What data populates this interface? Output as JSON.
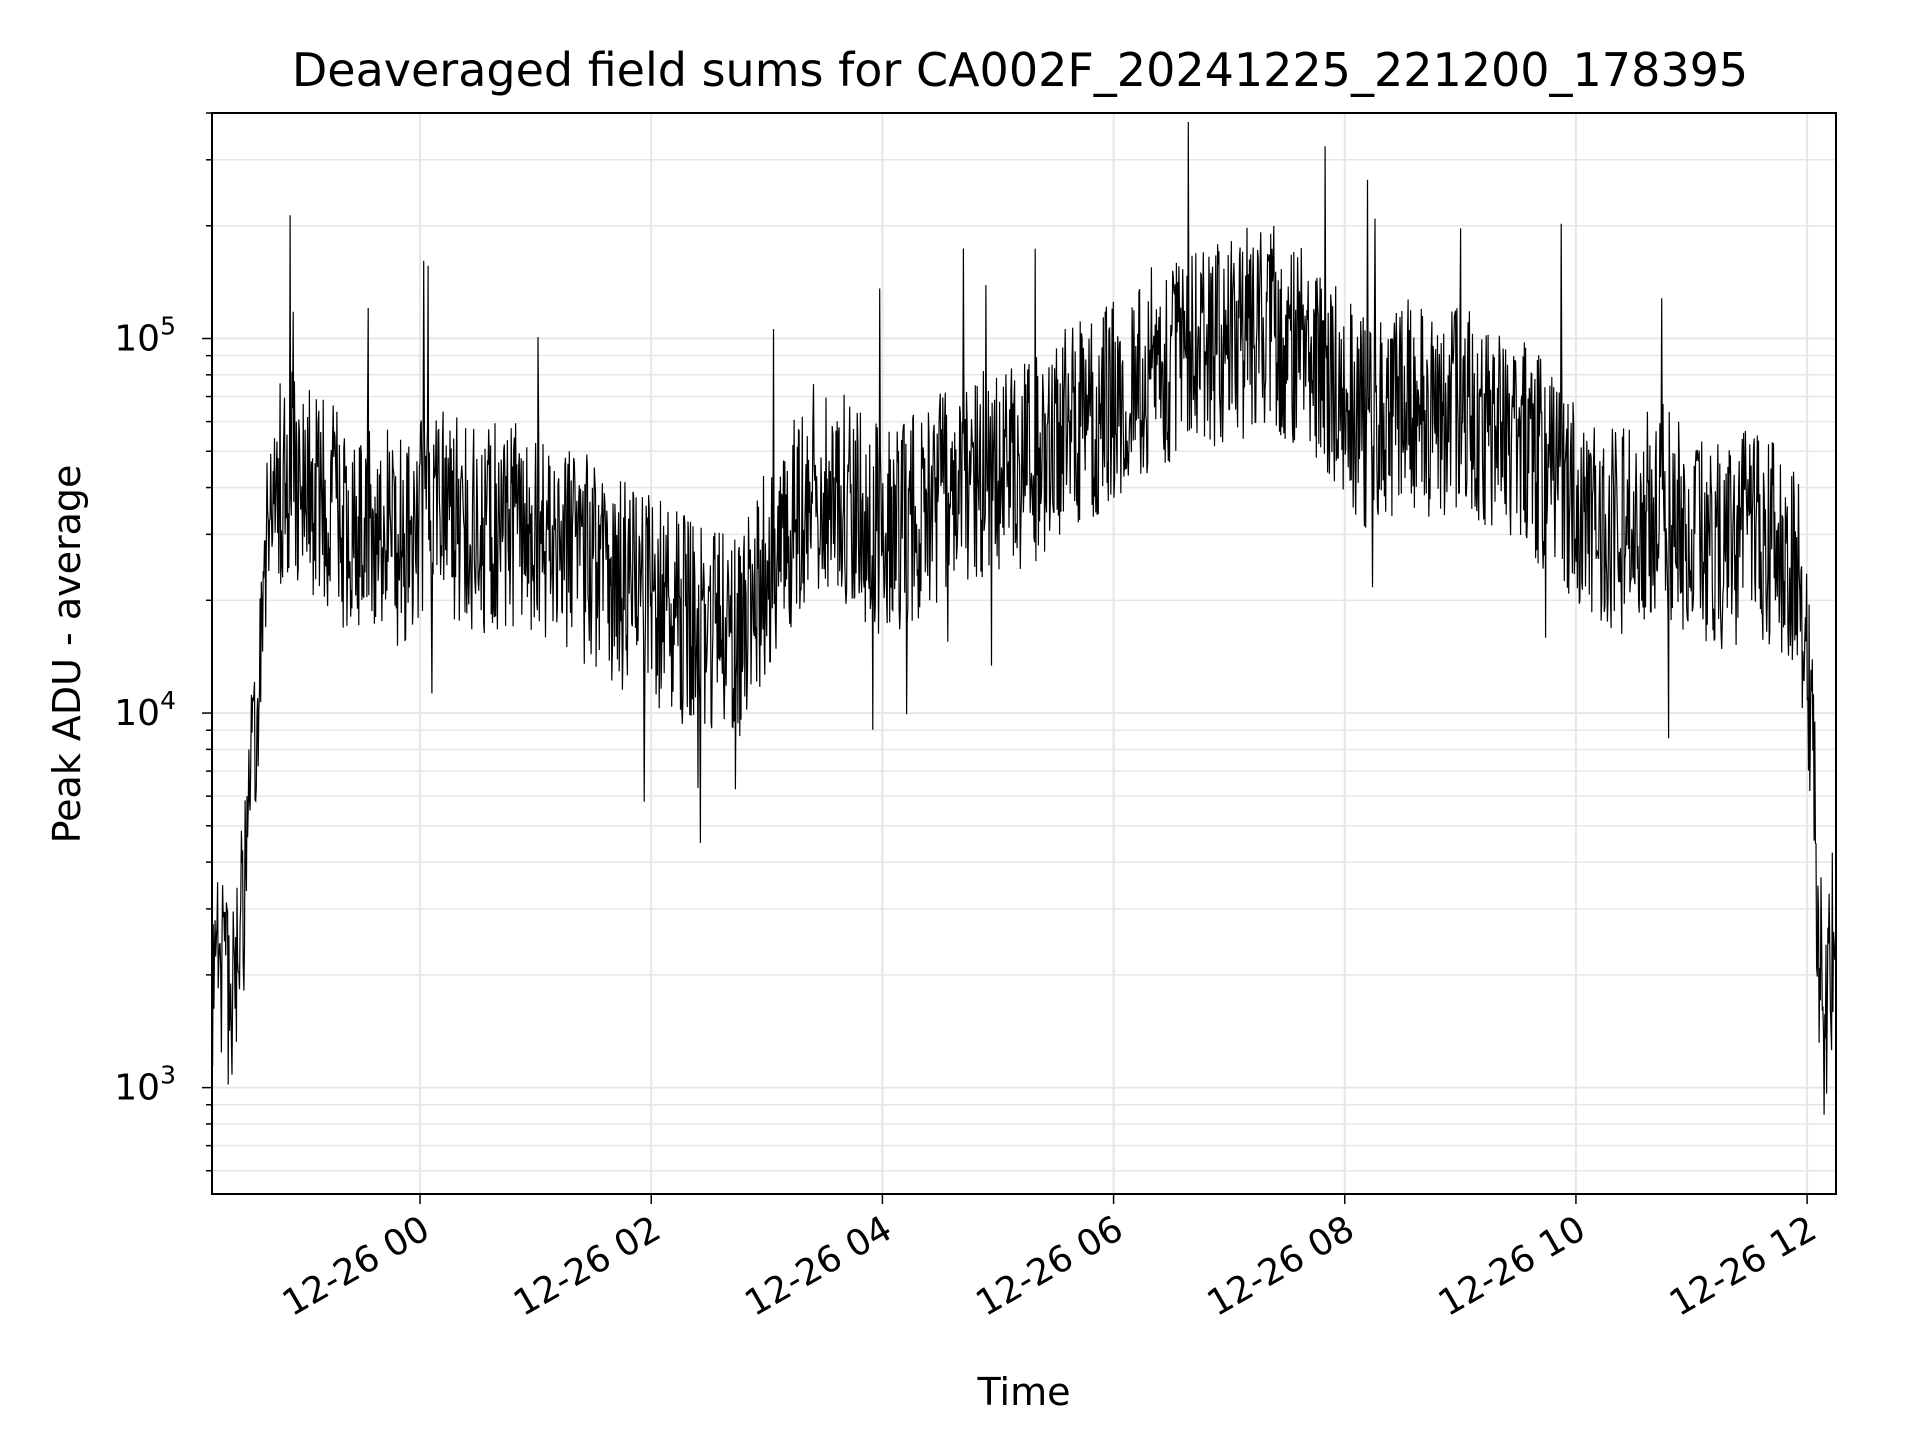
{
  "chart_data": {
    "type": "line",
    "title": "Deaveraged field sums for CA002F_20241225_221200_178395",
    "xlabel": "Time",
    "ylabel": "Peak ADU - average",
    "y_scale": "log",
    "ylim": [
      520,
      400000
    ],
    "xlim": [
      "2024-12-25 22:12",
      "2024-12-26 12:15"
    ],
    "grid": true,
    "line_color": "#000000",
    "x_tick_labels": [
      "12-26 00",
      "12-26 02",
      "12-26 04",
      "12-26 06",
      "12-26 08",
      "12-26 10",
      "12-26 12"
    ],
    "y_tick_labels": [
      {
        "base": "10",
        "exp": "3",
        "value": 1000
      },
      {
        "base": "10",
        "exp": "4",
        "value": 10000
      },
      {
        "base": "10",
        "exp": "5",
        "value": 100000
      }
    ],
    "series": [
      {
        "x": [
          "2024-12-25 22:12",
          "2024-12-25 22:16",
          "2024-12-25 22:20",
          "2024-12-25 22:25",
          "2024-12-25 22:30",
          "2024-12-25 22:36",
          "2024-12-25 22:42",
          "2024-12-25 22:50",
          "2024-12-25 23:00",
          "2024-12-25 23:10",
          "2024-12-25 23:20",
          "2024-12-25 23:30",
          "2024-12-25 23:40",
          "2024-12-25 23:50",
          "2024-12-26 00:00",
          "2024-12-26 00:15",
          "2024-12-26 00:30",
          "2024-12-26 00:45",
          "2024-12-26 01:00",
          "2024-12-26 01:15",
          "2024-12-26 01:30",
          "2024-12-26 01:45",
          "2024-12-26 02:00",
          "2024-12-26 02:15",
          "2024-12-26 02:30",
          "2024-12-26 02:45",
          "2024-12-26 03:00",
          "2024-12-26 03:10",
          "2024-12-26 03:20",
          "2024-12-26 03:30",
          "2024-12-26 03:45",
          "2024-12-26 04:00",
          "2024-12-26 04:15",
          "2024-12-26 04:30",
          "2024-12-26 04:45",
          "2024-12-26 05:00",
          "2024-12-26 05:15",
          "2024-12-26 05:30",
          "2024-12-26 05:45",
          "2024-12-26 06:00",
          "2024-12-26 06:15",
          "2024-12-26 06:30",
          "2024-12-26 06:45",
          "2024-12-26 07:00",
          "2024-12-26 07:15",
          "2024-12-26 07:30",
          "2024-12-26 07:45",
          "2024-12-26 08:00",
          "2024-12-26 08:15",
          "2024-12-26 08:30",
          "2024-12-26 08:45",
          "2024-12-26 09:00",
          "2024-12-26 09:15",
          "2024-12-26 09:30",
          "2024-12-26 09:45",
          "2024-12-26 10:00",
          "2024-12-26 10:15",
          "2024-12-26 10:30",
          "2024-12-26 10:45",
          "2024-12-26 11:00",
          "2024-12-26 11:15",
          "2024-12-26 11:30",
          "2024-12-26 11:45",
          "2024-12-26 11:55",
          "2024-12-26 12:00",
          "2024-12-26 12:03",
          "2024-12-26 12:06",
          "2024-12-26 12:09",
          "2024-12-26 12:12",
          "2024-12-26 12:15"
        ],
        "y": [
          1500,
          2500,
          1800,
          2200,
          4000,
          12000,
          35000,
          45000,
          40000,
          38000,
          32000,
          30000,
          33000,
          28000,
          32000,
          35000,
          30000,
          32000,
          30000,
          28000,
          25000,
          22000,
          20000,
          18000,
          17000,
          16000,
          24000,
          28000,
          38000,
          42000,
          35000,
          30000,
          33000,
          38000,
          42000,
          45000,
          45000,
          55000,
          60000,
          70000,
          80000,
          90000,
          100000,
          95000,
          110000,
          100000,
          90000,
          70000,
          55000,
          70000,
          60000,
          65000,
          60000,
          55000,
          45000,
          38000,
          30000,
          32000,
          35000,
          30000,
          28000,
          30000,
          28000,
          25000,
          14000,
          9000,
          2500,
          1500,
          2000,
          3000
        ]
      }
    ]
  }
}
